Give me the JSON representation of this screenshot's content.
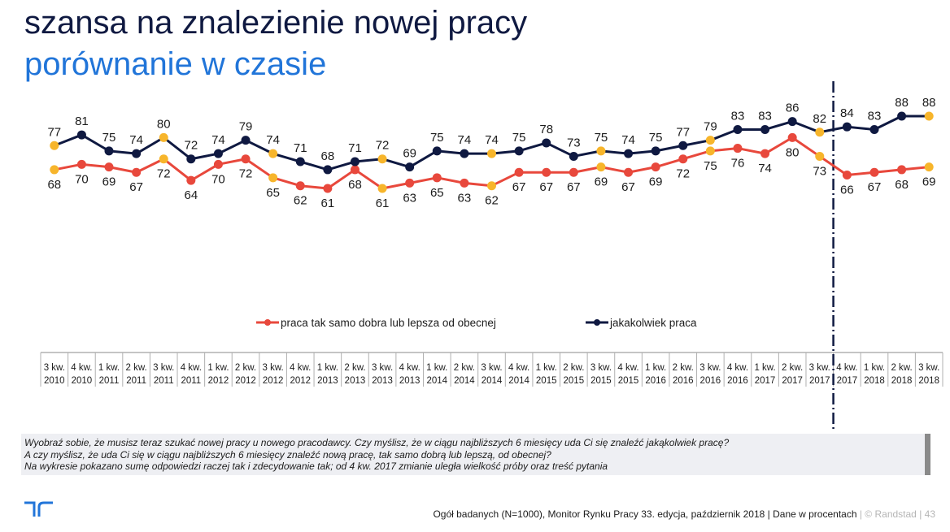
{
  "title": "szansa na znalezienie nowej pracy",
  "subtitle": "porównanie w czasie",
  "colors": {
    "series_red": "#e8483c",
    "series_navy": "#0f1941",
    "highlight": "#f7b52b",
    "title": "#0f1941",
    "subtitle": "#2175d9"
  },
  "chart_data": {
    "type": "line",
    "categories": [
      [
        "3 kw.",
        "2010"
      ],
      [
        "4 kw.",
        "2010"
      ],
      [
        "1 kw.",
        "2011"
      ],
      [
        "2 kw.",
        "2011"
      ],
      [
        "3 kw.",
        "2011"
      ],
      [
        "4 kw.",
        "2011"
      ],
      [
        "1 kw.",
        "2012"
      ],
      [
        "2 kw.",
        "2012"
      ],
      [
        "3 kw.",
        "2012"
      ],
      [
        "4 kw.",
        "2012"
      ],
      [
        "1 kw.",
        "2013"
      ],
      [
        "2 kw.",
        "2013"
      ],
      [
        "3 kw.",
        "2013"
      ],
      [
        "4 kw.",
        "2013"
      ],
      [
        "1 kw.",
        "2014"
      ],
      [
        "2 kw.",
        "2014"
      ],
      [
        "3 kw.",
        "2014"
      ],
      [
        "4 kw.",
        "2014"
      ],
      [
        "1 kw.",
        "2015"
      ],
      [
        "2 kw.",
        "2015"
      ],
      [
        "3 kw.",
        "2015"
      ],
      [
        "4 kw.",
        "2015"
      ],
      [
        "1 kw.",
        "2016"
      ],
      [
        "2 kw.",
        "2016"
      ],
      [
        "3 kw.",
        "2016"
      ],
      [
        "4 kw.",
        "2016"
      ],
      [
        "1 kw.",
        "2017"
      ],
      [
        "2 kw.",
        "2017"
      ],
      [
        "3 kw.",
        "2017"
      ],
      [
        "4 kw.",
        "2017"
      ],
      [
        "1 kw.",
        "2018"
      ],
      [
        "2 kw.",
        "2018"
      ],
      [
        "3 kw.",
        "2018"
      ]
    ],
    "series": [
      {
        "name": "jakakolwiek praca",
        "color": "#0f1941",
        "values": [
          77,
          81,
          75,
          74,
          80,
          72,
          74,
          79,
          74,
          71,
          68,
          71,
          72,
          69,
          75,
          74,
          74,
          75,
          78,
          73,
          75,
          74,
          75,
          77,
          79,
          83,
          83,
          86,
          82,
          84,
          83,
          88,
          88
        ]
      },
      {
        "name": "praca tak samo dobra lub lepsza od obecnej",
        "color": "#e8483c",
        "values": [
          68,
          70,
          69,
          67,
          72,
          64,
          70,
          72,
          65,
          62,
          61,
          68,
          61,
          63,
          65,
          63,
          62,
          67,
          67,
          67,
          69,
          67,
          69,
          72,
          75,
          76,
          74,
          80,
          73,
          66,
          67,
          68,
          69
        ]
      }
    ],
    "highlighted_points": [
      0,
      4,
      8,
      12,
      16,
      20,
      24,
      28,
      32
    ],
    "break_after_index": 28,
    "legend_position": "center",
    "grid": false
  },
  "note": {
    "line1": "Wyobraź sobie, że musisz teraz szukać nowej pracy u nowego pracodawcy. Czy myślisz, że w ciągu najbliższych 6 miesięcy uda Ci się znaleźć jakąkolwiek pracę?",
    "line2": "A czy myślisz, że uda Ci się w ciągu najbliższych 6 miesięcy znaleźć nową pracę, tak samo dobrą lub lepszą, od obecnej?",
    "line3": "Na  wykresie pokazano sumę odpowiedzi raczej tak i zdecydowanie tak; od 4 kw. 2017 zmianie uległa wielkość próby oraz treść pytania"
  },
  "footer": {
    "source": "Ogół badanych (N=1000), Monitor Rynku Pracy 33. edycja, październik 2018 | Dane w procentach",
    "copyright": "| © Randstad  |  43"
  },
  "logo_icon": "randstad-logo-icon"
}
